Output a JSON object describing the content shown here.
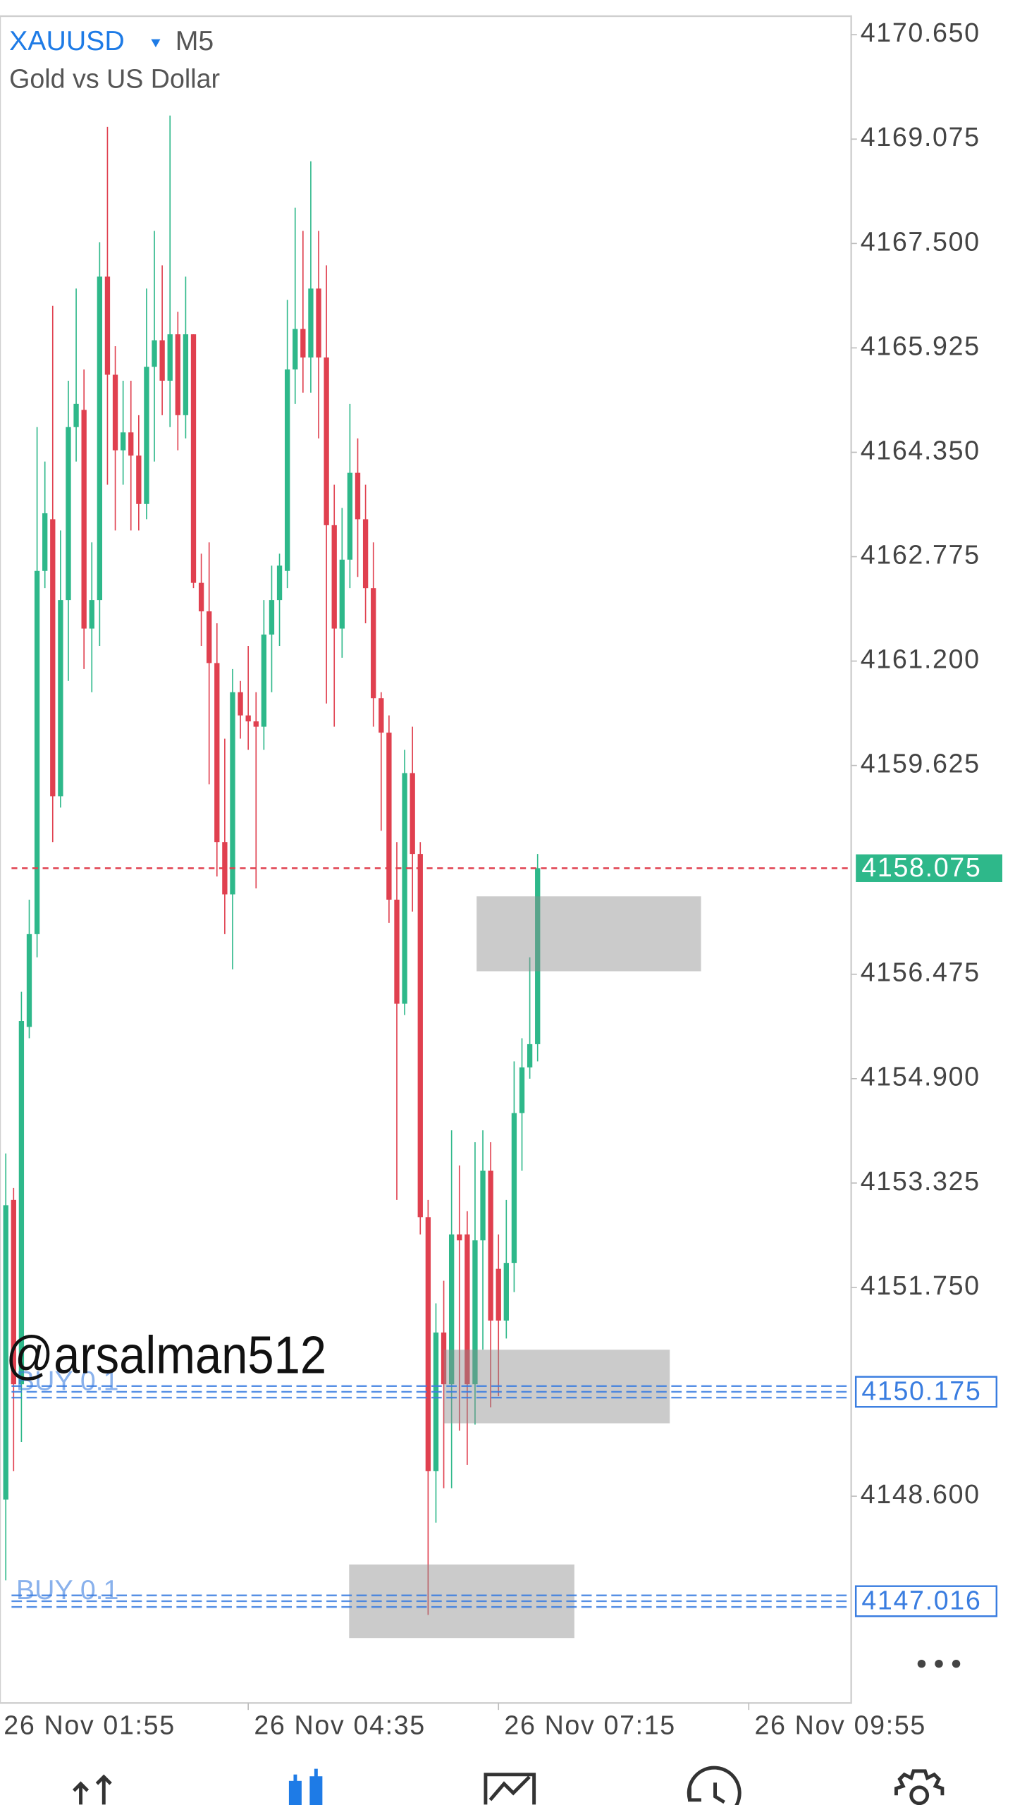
{
  "header": {
    "symbol": "XAUUSD",
    "timeframe": "M5",
    "description": "Gold vs US Dollar"
  },
  "watermark": "@arsalman512",
  "chart_data": {
    "type": "candlestick",
    "up_color": "#2eb88a",
    "down_color": "#e0404f",
    "xlim": [
      -0.74,
      108.1
    ],
    "xticks": [
      {
        "value": -1,
        "label": "26 Nov 01:55"
      },
      {
        "value": 31,
        "label": "26 Nov 04:35"
      },
      {
        "value": 63,
        "label": "26 Nov 07:15"
      },
      {
        "value": 95,
        "label": "26 Nov 09:55"
      }
    ],
    "ylim": [
      4145.48,
      4170.93
    ],
    "yticks": [
      {
        "value": 4170.65,
        "label": "4170.650"
      },
      4169.075,
      {
        "value": 4167.5,
        "label": "4167.500"
      },
      4165.925,
      {
        "value": 4164.35,
        "label": "4164.350"
      },
      4162.775,
      {
        "value": 4161.2,
        "label": "4161.200"
      },
      4159.625,
      4156.475,
      {
        "value": 4154.9,
        "label": "4154.900"
      },
      4153.325,
      {
        "value": 4151.75,
        "label": "4151.750"
      },
      {
        "value": 4148.6,
        "label": "4148.600"
      }
    ],
    "open": [
      4148.55,
      4153.07,
      4150.29,
      4155.68,
      4157.08,
      4162.56,
      4163.34,
      4159.16,
      4162.12,
      4164.73,
      4164.99,
      4161.69,
      4162.12,
      4167.0,
      4165.52,
      4164.38,
      4164.65,
      4164.3,
      4163.57,
      4165.64,
      4166.04,
      4165.43,
      4166.13,
      4164.91,
      4166.13,
      4162.38,
      4161.95,
      4161.17,
      4158.47,
      4157.68,
      4160.73,
      4160.38,
      4160.29,
      4160.21,
      4161.6,
      4162.12,
      4162.56,
      4165.6,
      4166.21,
      4165.78,
      4166.82,
      4165.78,
      4163.25,
      4161.69,
      4162.73,
      4164.04,
      4163.34,
      4162.3,
      4160.64,
      4160.12,
      4157.6,
      4156.03,
      4159.51,
      4158.29,
      4152.81,
      4148.98,
      4151.07,
      4150.29,
      4152.55,
      4152.55,
      4150.29,
      4152.46,
      4153.51,
      4152.03,
      4151.25,
      4152.12,
      4154.38,
      4155.07,
      4155.42
    ],
    "high": [
      4153.77,
      4153.25,
      4156.21,
      4157.6,
      4164.73,
      4164.21,
      4166.56,
      4163.17,
      4165.43,
      4166.82,
      4165.6,
      4162.99,
      4167.52,
      4169.26,
      4165.95,
      4165.43,
      4165.43,
      4164.91,
      4166.82,
      4167.69,
      4167.17,
      4169.43,
      4166.47,
      4167.0,
      4166.13,
      4162.82,
      4162.99,
      4161.77,
      4160.03,
      4161.08,
      4160.9,
      4161.43,
      4160.73,
      4162.12,
      4162.64,
      4162.82,
      4166.65,
      4168.04,
      4167.69,
      4168.74,
      4167.69,
      4167.17,
      4163.86,
      4163.51,
      4165.08,
      4164.56,
      4163.86,
      4162.99,
      4160.73,
      4160.38,
      4158.47,
      4159.86,
      4160.21,
      4158.47,
      4153.07,
      4151.51,
      4151.85,
      4154.12,
      4153.59,
      4152.9,
      4153.94,
      4154.12,
      4153.94,
      4152.55,
      4153.07,
      4155.16,
      4155.51,
      4156.73,
      4158.29
    ],
    "low": [
      4147.33,
      4148.98,
      4149.42,
      4155.51,
      4156.73,
      4162.3,
      4158.47,
      4158.99,
      4160.9,
      4164.21,
      4161.08,
      4160.73,
      4161.43,
      4163.86,
      4163.17,
      4163.86,
      4163.17,
      4163.17,
      4163.34,
      4164.21,
      4164.91,
      4164.73,
      4164.38,
      4164.56,
      4162.3,
      4161.43,
      4159.34,
      4157.95,
      4157.08,
      4156.55,
      4160.03,
      4159.86,
      4157.77,
      4159.86,
      4160.73,
      4161.43,
      4162.3,
      4165.08,
      4165.25,
      4165.25,
      4164.56,
      4160.56,
      4160.21,
      4161.25,
      4162.3,
      4162.47,
      4161.77,
      4160.21,
      4158.64,
      4157.25,
      4153.07,
      4155.86,
      4157.42,
      4152.55,
      4146.81,
      4148.2,
      4148.72,
      4148.72,
      4149.59,
      4149.07,
      4149.68,
      4150.81,
      4149.94,
      4150.11,
      4150.98,
      4151.68,
      4153.51,
      4154.9,
      4155.16
    ],
    "close": [
      4152.99,
      4150.29,
      4155.77,
      4157.08,
      4162.56,
      4163.43,
      4159.16,
      4162.12,
      4164.73,
      4165.08,
      4161.69,
      4162.12,
      4167.0,
      4165.52,
      4164.38,
      4164.65,
      4164.3,
      4163.57,
      4165.64,
      4166.04,
      4165.43,
      4166.13,
      4164.91,
      4166.13,
      4162.38,
      4161.95,
      4161.17,
      4158.47,
      4157.68,
      4160.73,
      4160.38,
      4160.29,
      4160.21,
      4161.6,
      4162.12,
      4162.64,
      4165.6,
      4166.21,
      4165.78,
      4166.82,
      4165.78,
      4163.25,
      4161.69,
      4162.73,
      4164.04,
      4163.34,
      4162.3,
      4160.64,
      4160.12,
      4157.6,
      4156.03,
      4159.51,
      4158.29,
      4152.81,
      4148.98,
      4151.07,
      4150.29,
      4152.55,
      4152.46,
      4150.29,
      4152.46,
      4153.51,
      4151.25,
      4151.25,
      4152.12,
      4154.38,
      4155.07,
      4155.42,
      4158.075
    ],
    "current_price": 4158.075,
    "current_price_color": "#e0404f",
    "current_label_color": "#2eb88a",
    "order_lines": [
      {
        "label": "BUY 0.1",
        "price": 4150.175
      },
      {
        "label": "BUY 0.1",
        "price": 4147.016
      }
    ],
    "order_color": "#3a7de0",
    "zones": [
      {
        "x": [
          60.2,
          88.9
        ],
        "y": [
          4156.52,
          4157.65
        ]
      },
      {
        "x": [
          56.0,
          84.9
        ],
        "y": [
          4149.7,
          4150.81
        ]
      },
      {
        "x": [
          43.9,
          72.7
        ],
        "y": [
          4146.46,
          4147.57
        ]
      }
    ]
  }
}
